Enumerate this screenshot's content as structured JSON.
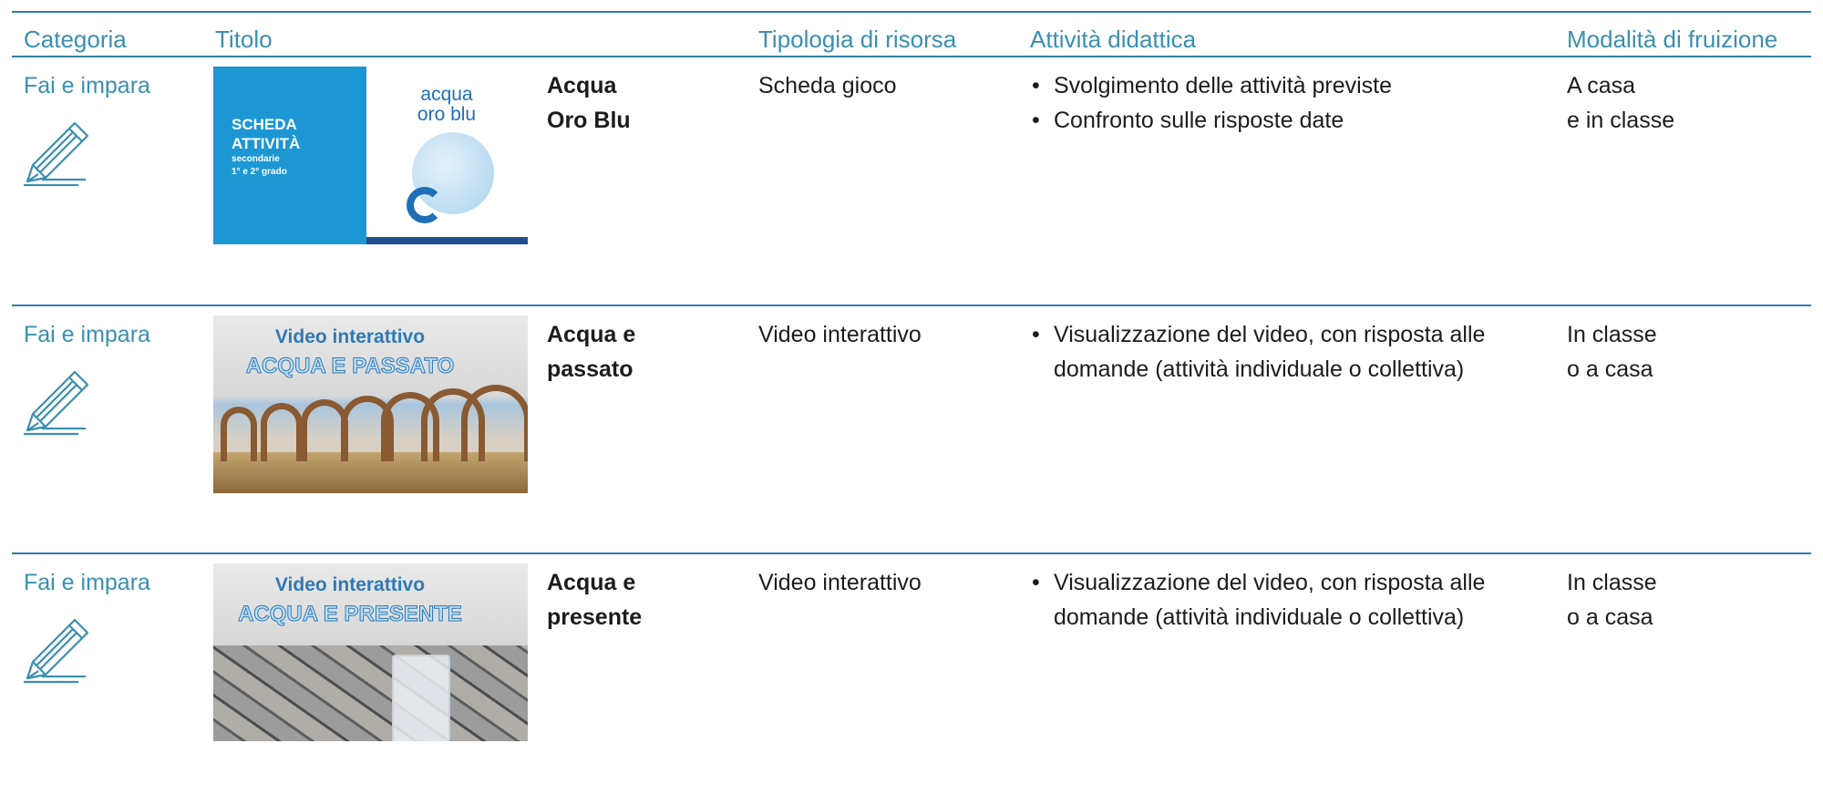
{
  "header": {
    "columns": [
      "Categoria",
      "Titolo",
      "Tipologia di risorsa",
      "Attività didattica",
      "Modalità di fruizione"
    ]
  },
  "rows": [
    {
      "category": "Fai e impara",
      "image": {
        "lines": [
          "SCHEDA",
          "ATTIVITÀ",
          "secondarie",
          "1° e 2° grado"
        ],
        "badge": [
          "acqua",
          "oro blu"
        ]
      },
      "title": [
        "Acqua",
        "Oro Blu"
      ],
      "type": "Scheda gioco",
      "activities": [
        "Svolgimento delle attività previste",
        "Confronto sulle risposte date"
      ],
      "mode": [
        "A casa",
        "e in classe"
      ]
    },
    {
      "category": "Fai e impara",
      "image": {
        "lines": [
          "Video interattivo",
          "ACQUA E PASSATO"
        ]
      },
      "title": [
        "Acqua e",
        "passato"
      ],
      "type": "Video interattivo",
      "activities": [
        "Visualizzazione del video, con risposta alle domande (attività individuale o collettiva)"
      ],
      "mode": [
        "In classe",
        "o a casa"
      ]
    },
    {
      "category": "Fai e impara",
      "image": {
        "lines": [
          "Video interattivo",
          "ACQUA E PRESENTE"
        ]
      },
      "title": [
        "Acqua e",
        "presente"
      ],
      "type": "Video interattivo",
      "activities": [
        "Visualizzazione del video, con risposta alle domande (attività individuale o collettiva)"
      ],
      "mode": [
        "In classe",
        "o a casa"
      ]
    }
  ]
}
